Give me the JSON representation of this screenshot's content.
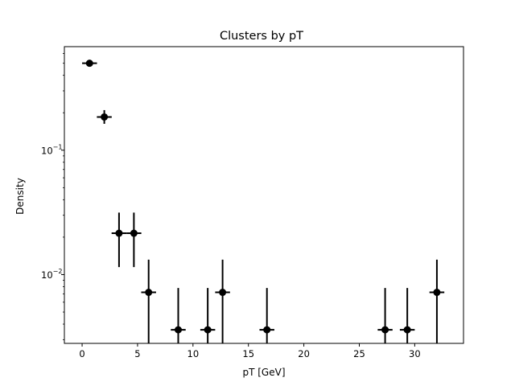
{
  "chart_data": {
    "type": "scatter",
    "title": "Clusters by pT",
    "xlabel": "pT [GeV]",
    "ylabel": "Density",
    "xlim": [
      -1.6,
      34.4
    ],
    "ylim": [
      0.0028,
      0.68
    ],
    "yscale": "log",
    "grid": false,
    "x_ticks": [
      0,
      5,
      10,
      15,
      20,
      25,
      30
    ],
    "x_tick_labels": [
      "0",
      "5",
      "10",
      "15",
      "20",
      "25",
      "30"
    ],
    "y_major_ticks": [
      0.01,
      0.1
    ],
    "y_major_tick_labels": [
      [
        "10",
        "−2"
      ],
      [
        "10",
        "−1"
      ]
    ],
    "marker_color": "#000000",
    "points": [
      {
        "x": 0.67,
        "y": 0.5,
        "xerr": 0.67,
        "yerr_low": 0.02,
        "yerr_high": 0.02
      },
      {
        "x": 2.0,
        "y": 0.185,
        "xerr": 0.67,
        "yerr_low": 0.022,
        "yerr_high": 0.025
      },
      {
        "x": 3.33,
        "y": 0.0215,
        "xerr": 0.67,
        "yerr_low": 0.01,
        "yerr_high": 0.01
      },
      {
        "x": 4.67,
        "y": 0.0215,
        "xerr": 0.67,
        "yerr_low": 0.01,
        "yerr_high": 0.01
      },
      {
        "x": 6.0,
        "y": 0.0072,
        "xerr": 0.67,
        "yerr_low": 0.0072,
        "yerr_high": 0.006
      },
      {
        "x": 8.67,
        "y": 0.0036,
        "xerr": 0.67,
        "yerr_low": 0.0036,
        "yerr_high": 0.0042
      },
      {
        "x": 11.33,
        "y": 0.0036,
        "xerr": 0.67,
        "yerr_low": 0.0036,
        "yerr_high": 0.0042
      },
      {
        "x": 12.67,
        "y": 0.0072,
        "xerr": 0.67,
        "yerr_low": 0.0072,
        "yerr_high": 0.006
      },
      {
        "x": 16.67,
        "y": 0.0036,
        "xerr": 0.67,
        "yerr_low": 0.0036,
        "yerr_high": 0.0042
      },
      {
        "x": 27.33,
        "y": 0.0036,
        "xerr": 0.67,
        "yerr_low": 0.0036,
        "yerr_high": 0.0042
      },
      {
        "x": 29.33,
        "y": 0.0036,
        "xerr": 0.67,
        "yerr_low": 0.0036,
        "yerr_high": 0.0042
      },
      {
        "x": 32.0,
        "y": 0.0072,
        "xerr": 0.67,
        "yerr_low": 0.0072,
        "yerr_high": 0.006
      }
    ]
  }
}
